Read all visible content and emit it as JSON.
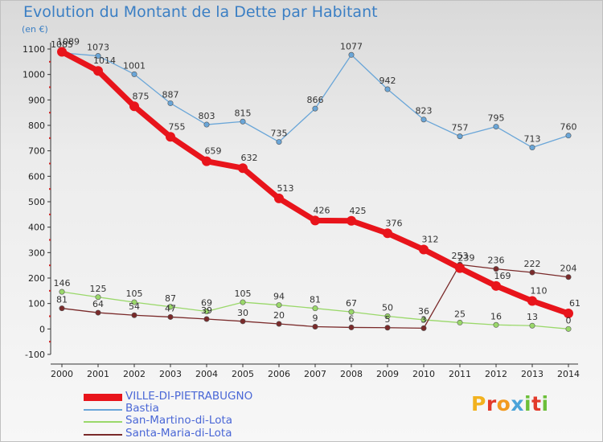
{
  "title": "Evolution du Montant de la Dette par Habitant",
  "subtitle": "(en €)",
  "logo": {
    "text": "Proxiti",
    "letters": [
      "P",
      "r",
      "o",
      "x",
      "i",
      "t",
      "i"
    ],
    "colors": [
      "#f2b21f",
      "#e23a2b",
      "#f29a1f",
      "#4aa3d9",
      "#6cbf3a",
      "#e23a2b",
      "#6cbf3a"
    ]
  },
  "chart_data": {
    "type": "line",
    "x": [
      2000,
      2001,
      2002,
      2003,
      2004,
      2005,
      2006,
      2007,
      2008,
      2009,
      2010,
      2011,
      2012,
      2013,
      2014
    ],
    "ylim": [
      -100,
      1100
    ],
    "yticks": [
      -100,
      0,
      100,
      200,
      300,
      400,
      500,
      600,
      700,
      800,
      900,
      1000,
      1100
    ],
    "grid": false,
    "legend": "bottom-left",
    "series": [
      {
        "name": "VILLE-DI-PIETRABUGNO",
        "color": "#e8141b",
        "values": [
          1089,
          1014,
          875,
          755,
          659,
          632,
          513,
          426,
          425,
          376,
          312,
          239,
          169,
          110,
          61
        ]
      },
      {
        "name": "Bastia",
        "color": "#6aa6d8",
        "values": [
          1085,
          1073,
          1001,
          887,
          803,
          815,
          735,
          866,
          1077,
          942,
          823,
          757,
          795,
          713,
          760
        ]
      },
      {
        "name": "San-Martino-di-Lota",
        "color": "#9ad86a",
        "values": [
          146,
          125,
          105,
          87,
          69,
          105,
          94,
          81,
          67,
          50,
          36,
          25,
          16,
          13,
          0
        ]
      },
      {
        "name": "Santa-Maria-di-Lota",
        "color": "#7a2a2a",
        "values": [
          81,
          64,
          54,
          47,
          39,
          30,
          20,
          9,
          6,
          5,
          3,
          253,
          236,
          222,
          204
        ]
      }
    ]
  }
}
